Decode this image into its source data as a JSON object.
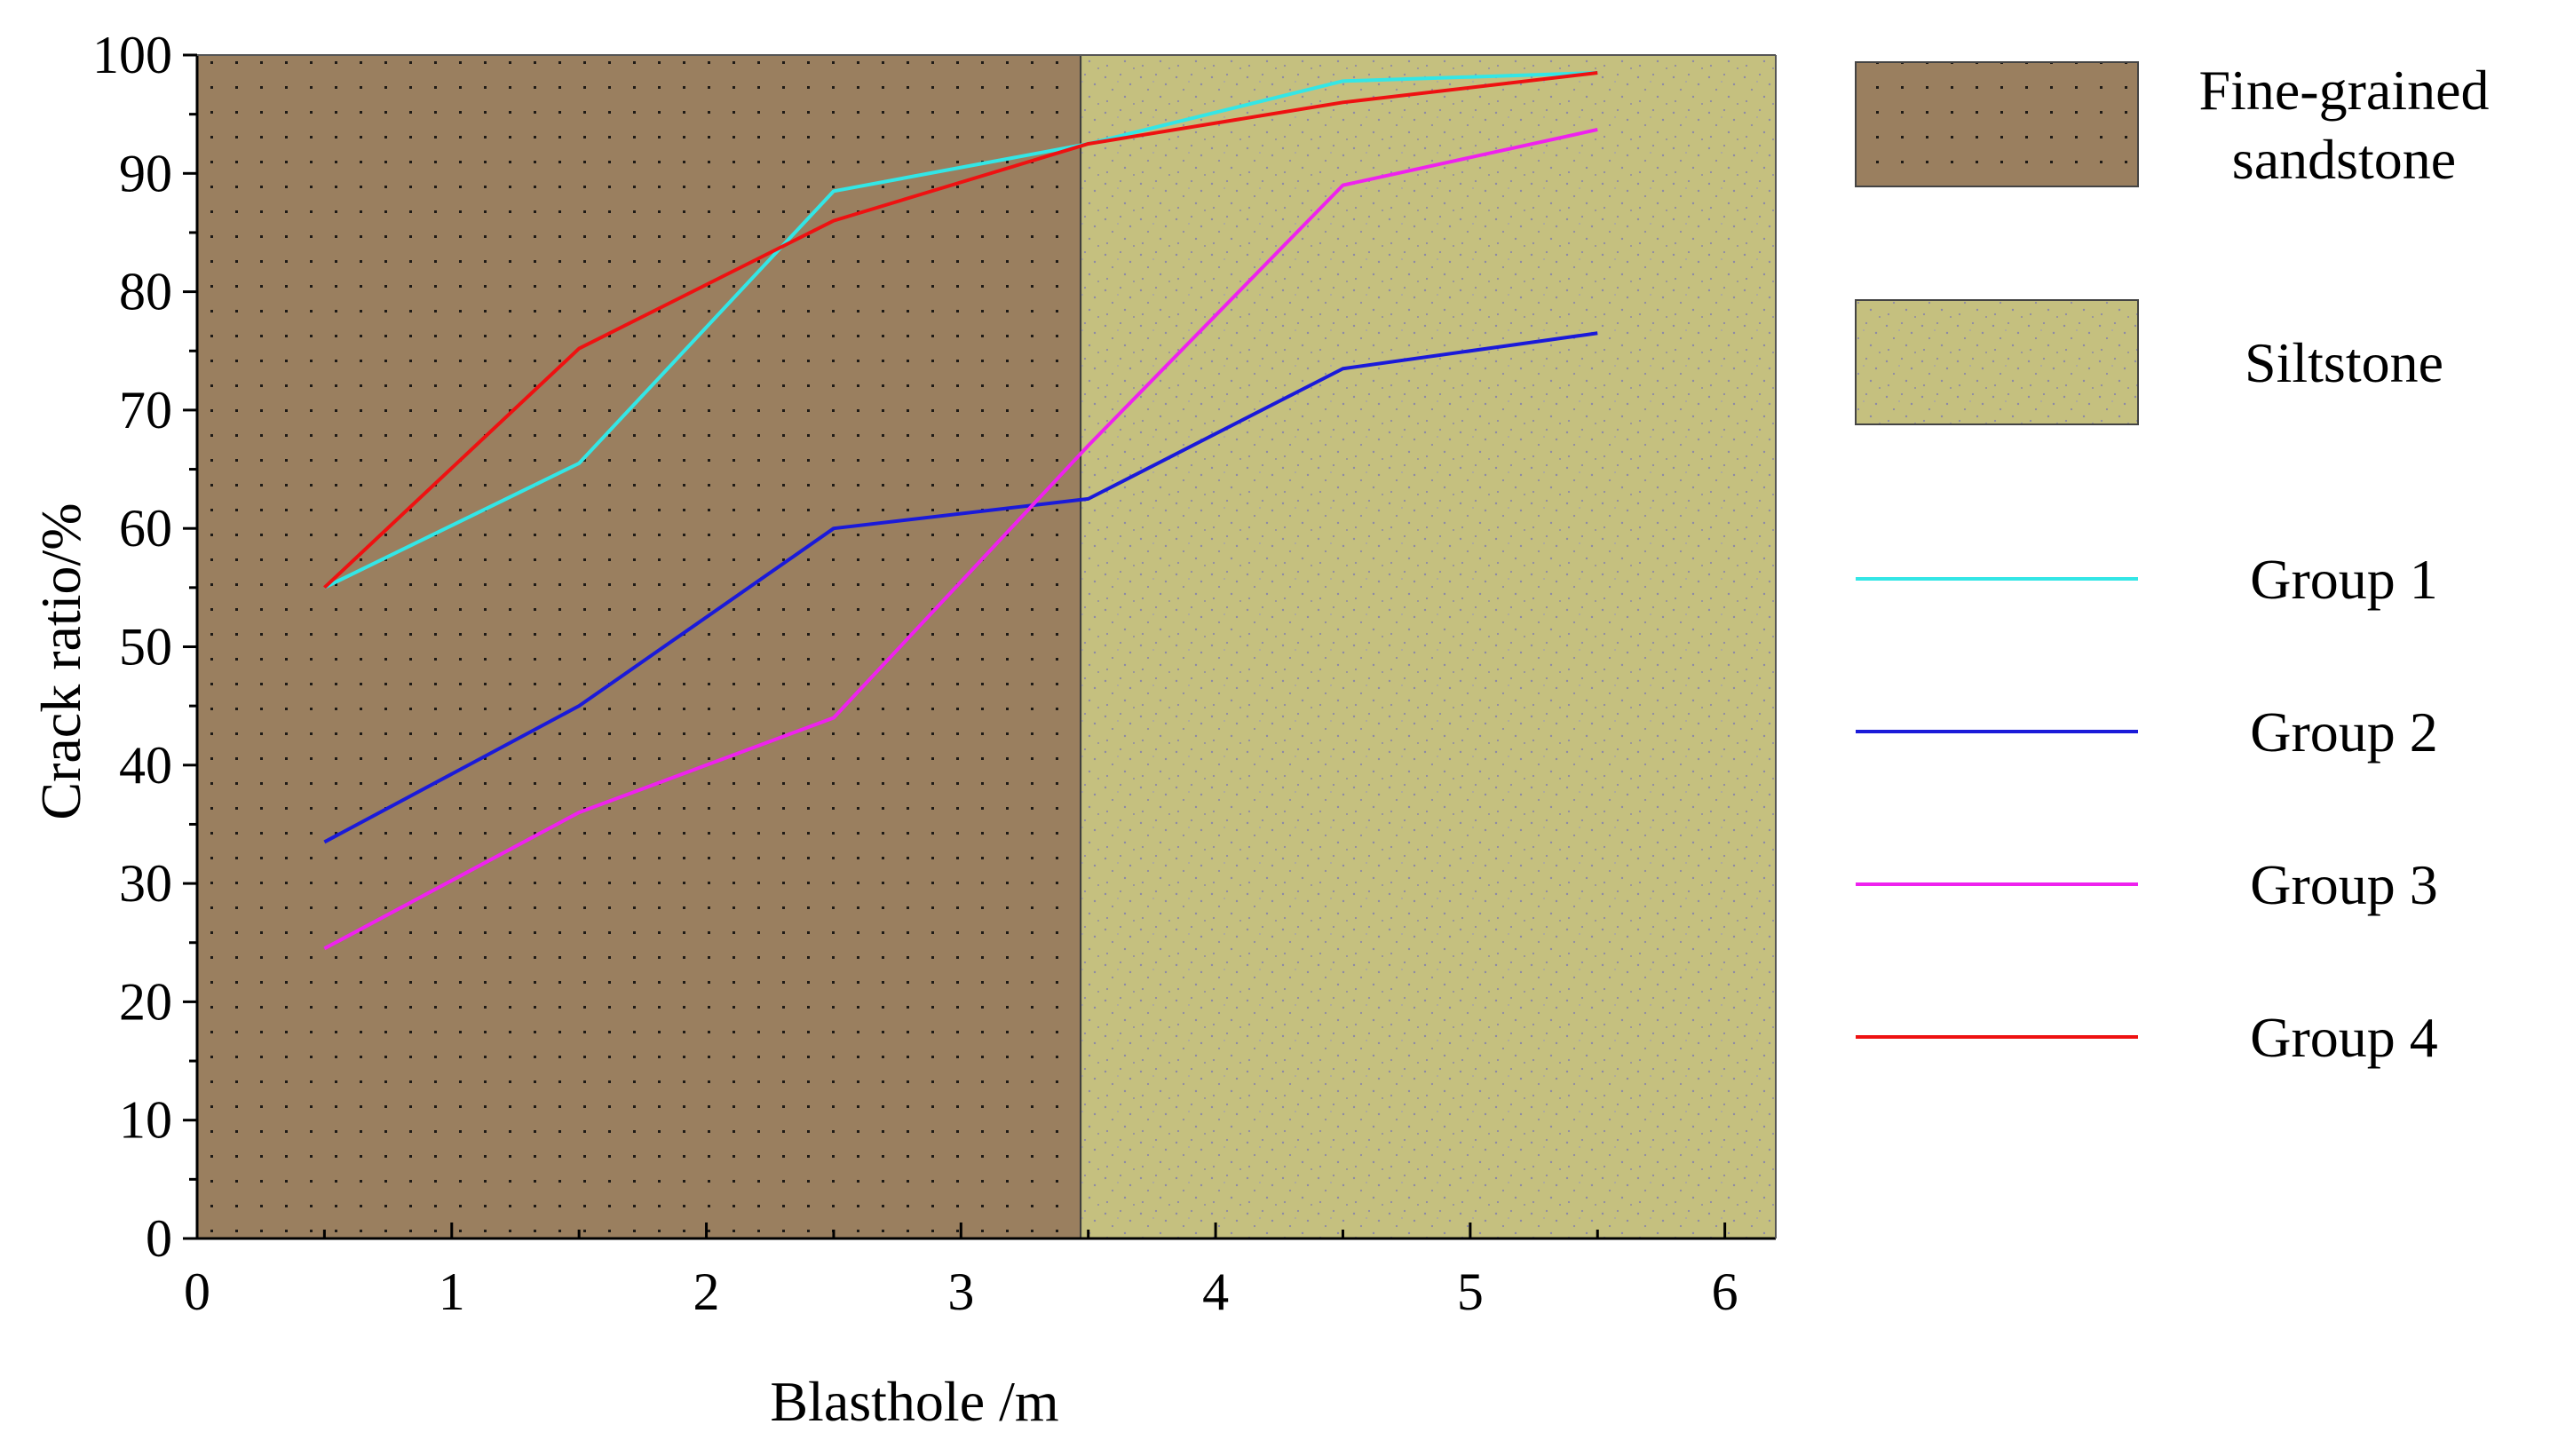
{
  "chart_data": {
    "type": "line",
    "title": "",
    "xlabel": "Blasthole /m",
    "ylabel": "Crack ratio/%",
    "xlim": [
      0,
      6.2
    ],
    "ylim": [
      0,
      100
    ],
    "xticks": [
      0,
      1,
      2,
      3,
      4,
      5,
      6
    ],
    "yticks": [
      0,
      10,
      20,
      30,
      40,
      50,
      60,
      70,
      80,
      90,
      100
    ],
    "x": [
      0.5,
      1.5,
      2.5,
      3.5,
      4.5,
      5.5
    ],
    "series": [
      {
        "name": "Group 1",
        "color": "#33e6e6",
        "values": [
          55,
          65.5,
          88.5,
          92.5,
          97.8,
          98.5
        ]
      },
      {
        "name": "Group 2",
        "color": "#1a1ad9",
        "values": [
          33.5,
          45,
          60,
          62.5,
          73.5,
          76.5
        ]
      },
      {
        "name": "Group 3",
        "color": "#ee22ee",
        "values": [
          24.5,
          36,
          44,
          67,
          89,
          93.7
        ]
      },
      {
        "name": "Group 4",
        "color": "#ee1111",
        "values": [
          55,
          75.2,
          86,
          92.5,
          96,
          98.5
        ]
      }
    ],
    "regions": [
      {
        "name": "Fine-grained sandstone",
        "label_lines": [
          "Fine-grained",
          "sandstone"
        ],
        "x_range": [
          0,
          3.47
        ],
        "color": "#9a7f5f"
      },
      {
        "name": "Siltstone",
        "label_lines": [
          "Siltstone"
        ],
        "x_range": [
          3.47,
          6.2
        ],
        "color": "#c5c07f"
      }
    ],
    "legend_position": "right",
    "grid": false
  }
}
